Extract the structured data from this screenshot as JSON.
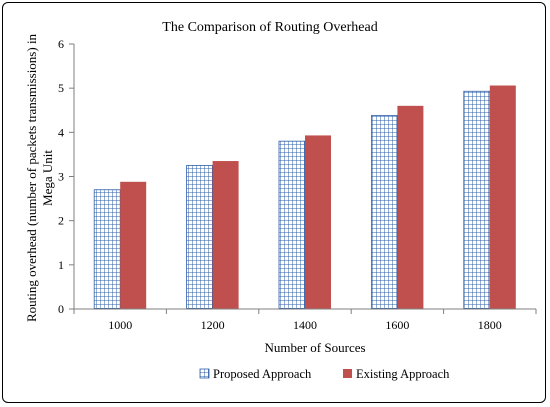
{
  "chart_data": {
    "type": "bar",
    "title": "The Comparison of Routing Overhead",
    "xlabel": "Number of Sources",
    "ylabel_line1": "Routing overhead (number of packets transmissions) in",
    "ylabel_line2": "Mega Unit",
    "categories": [
      "1000",
      "1200",
      "1400",
      "1600",
      "1800"
    ],
    "ylim": [
      0,
      6
    ],
    "yticks": [
      "0",
      "1",
      "2",
      "3",
      "4",
      "5",
      "6"
    ],
    "grid": false,
    "legend_position": "bottom",
    "series": [
      {
        "name": "Proposed Approach",
        "values": [
          2.7,
          3.25,
          3.8,
          4.38,
          4.93
        ],
        "color": "#2E5FA8",
        "pattern": "grid"
      },
      {
        "name": "Existing Approach",
        "values": [
          2.88,
          3.35,
          3.93,
          4.6,
          5.06
        ],
        "color": "#C0504D",
        "pattern": "solid"
      }
    ]
  }
}
